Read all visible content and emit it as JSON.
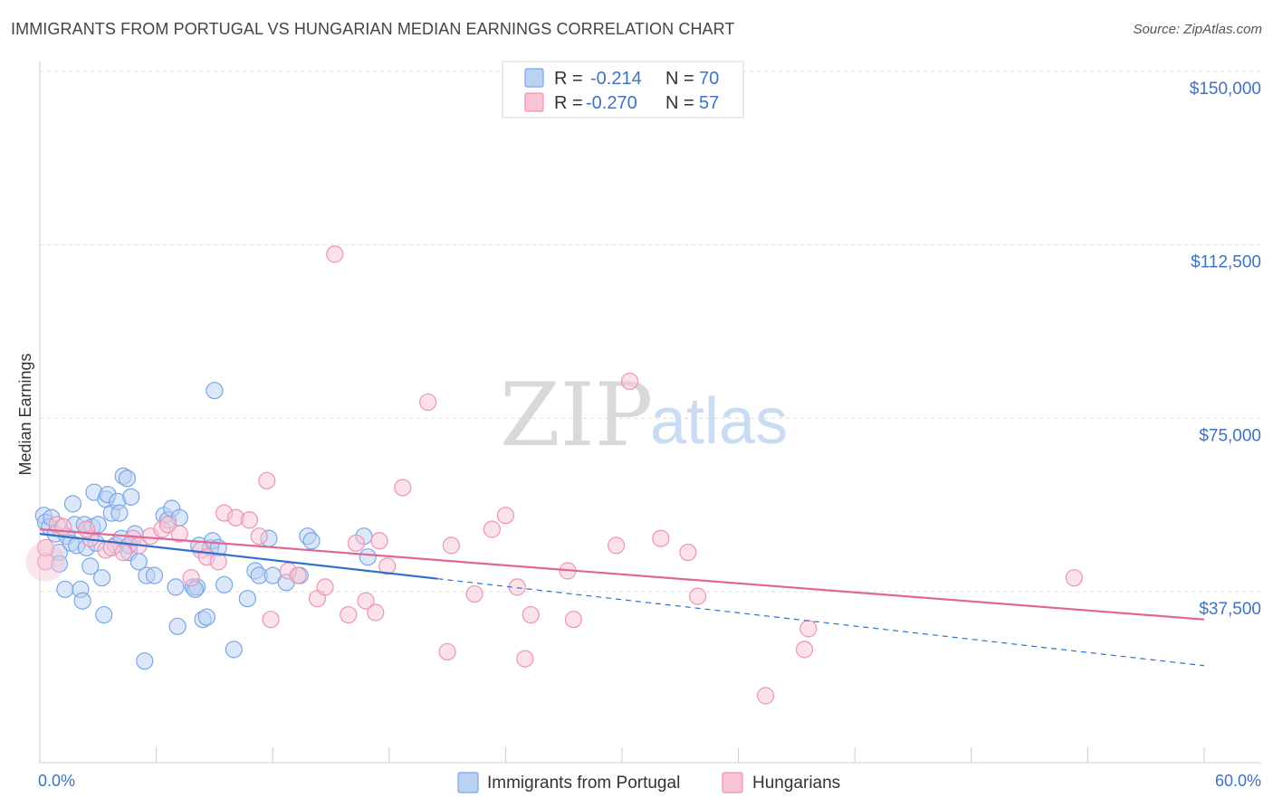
{
  "title": "IMMIGRANTS FROM PORTUGAL VS HUNGARIAN MEDIAN EARNINGS CORRELATION CHART",
  "source": "Source: ZipAtlas.com",
  "watermark": {
    "zip": "ZIP",
    "atlas": "atlas"
  },
  "colors": {
    "blue": "#7aa6e6",
    "blue_fill": "#b9d2f4",
    "blue_line": "#2f6fce",
    "pink": "#ee93b2",
    "pink_fill": "#f8c3d5",
    "pink_line": "#e06693",
    "tick": "#3d72c4"
  },
  "legend": {
    "rows": [
      {
        "r_label": "R =",
        "r_value": "-0.214",
        "n_label": "N =",
        "n_value": "70"
      },
      {
        "r_label": "R =",
        "r_value": "-0.270",
        "n_label": "N =",
        "n_value": "57"
      }
    ]
  },
  "bottom_legend": [
    "Immigrants from Portugal",
    "Hungarians"
  ],
  "chart_data": {
    "type": "scatter",
    "title": "IMMIGRANTS FROM PORTUGAL VS HUNGARIAN MEDIAN EARNINGS CORRELATION CHART",
    "xlabel": "",
    "ylabel": "Median Earnings",
    "xlim": [
      0,
      60
    ],
    "ylim": [
      0,
      157500
    ],
    "x_tick_labels": [
      "0.0%",
      "60.0%"
    ],
    "y_ticks": [
      37500,
      75000,
      112500,
      150000
    ],
    "y_tick_labels": [
      "$37,500",
      "$75,000",
      "$112,500",
      "$150,000"
    ],
    "grid": "horizontal dashed",
    "legend_position": "top-center",
    "series": [
      {
        "name": "Immigrants from Portugal",
        "color": "#7aa6e6",
        "trend": {
          "x": [
            0,
            20.5
          ],
          "y": [
            50000,
            40300
          ],
          "dashed_extension": {
            "x": [
              20.5,
              60
            ],
            "y": [
              40300,
              21500
            ]
          }
        },
        "points": [
          [
            0.2,
            54000
          ],
          [
            0.3,
            52500
          ],
          [
            0.5,
            51500
          ],
          [
            0.6,
            53500
          ],
          [
            0.8,
            50000
          ],
          [
            1.0,
            46000
          ],
          [
            1.0,
            43500
          ],
          [
            1.3,
            38000
          ],
          [
            1.4,
            49500
          ],
          [
            1.6,
            48000
          ],
          [
            1.7,
            56500
          ],
          [
            1.8,
            52000
          ],
          [
            1.9,
            47500
          ],
          [
            2.1,
            38000
          ],
          [
            2.2,
            35500
          ],
          [
            2.3,
            52000
          ],
          [
            2.4,
            47000
          ],
          [
            2.6,
            43000
          ],
          [
            2.7,
            51500
          ],
          [
            2.8,
            59000
          ],
          [
            2.9,
            48000
          ],
          [
            3.0,
            52000
          ],
          [
            3.2,
            40500
          ],
          [
            3.3,
            32500
          ],
          [
            3.4,
            57500
          ],
          [
            3.5,
            58500
          ],
          [
            3.7,
            54500
          ],
          [
            3.9,
            47500
          ],
          [
            4.0,
            57000
          ],
          [
            4.1,
            54500
          ],
          [
            4.2,
            49000
          ],
          [
            4.3,
            62500
          ],
          [
            4.5,
            62000
          ],
          [
            4.6,
            46000
          ],
          [
            4.7,
            58000
          ],
          [
            4.9,
            50000
          ],
          [
            5.1,
            44000
          ],
          [
            5.4,
            22500
          ],
          [
            5.5,
            41000
          ],
          [
            5.9,
            41000
          ],
          [
            6.4,
            54000
          ],
          [
            6.6,
            53000
          ],
          [
            6.8,
            55500
          ],
          [
            7.0,
            38500
          ],
          [
            7.1,
            30000
          ],
          [
            7.2,
            53500
          ],
          [
            7.9,
            38500
          ],
          [
            8.1,
            38500
          ],
          [
            8.2,
            47500
          ],
          [
            8.4,
            31500
          ],
          [
            8.6,
            32000
          ],
          [
            8.8,
            47000
          ],
          [
            8.9,
            48500
          ],
          [
            9.0,
            81000
          ],
          [
            9.2,
            47000
          ],
          [
            9.5,
            39000
          ],
          [
            10.0,
            25000
          ],
          [
            10.7,
            36000
          ],
          [
            11.1,
            42000
          ],
          [
            11.3,
            41000
          ],
          [
            11.8,
            49000
          ],
          [
            12.0,
            41000
          ],
          [
            12.7,
            39500
          ],
          [
            13.4,
            41000
          ],
          [
            13.8,
            49500
          ],
          [
            14.0,
            48500
          ],
          [
            16.7,
            49500
          ],
          [
            16.9,
            45000
          ],
          [
            4.6,
            47500
          ],
          [
            8.0,
            38000
          ]
        ]
      },
      {
        "name": "Hungarians",
        "color": "#ee93b2",
        "trend": {
          "x": [
            0,
            60
          ],
          "y": [
            51000,
            31500
          ]
        },
        "points": [
          [
            0.3,
            44000
          ],
          [
            0.3,
            47000
          ],
          [
            0.9,
            52000
          ],
          [
            1.2,
            51500
          ],
          [
            2.6,
            49000
          ],
          [
            3.4,
            46500
          ],
          [
            3.7,
            47000
          ],
          [
            4.3,
            46000
          ],
          [
            4.8,
            49000
          ],
          [
            5.1,
            47500
          ],
          [
            5.7,
            49500
          ],
          [
            6.3,
            51000
          ],
          [
            6.6,
            52000
          ],
          [
            7.2,
            50000
          ],
          [
            7.8,
            40500
          ],
          [
            8.3,
            46500
          ],
          [
            8.6,
            45000
          ],
          [
            9.2,
            44000
          ],
          [
            9.5,
            54500
          ],
          [
            10.1,
            53500
          ],
          [
            10.8,
            53000
          ],
          [
            11.3,
            49500
          ],
          [
            11.7,
            61500
          ],
          [
            11.9,
            31500
          ],
          [
            12.8,
            42000
          ],
          [
            13.3,
            41000
          ],
          [
            14.3,
            36000
          ],
          [
            14.7,
            38500
          ],
          [
            15.2,
            110500
          ],
          [
            15.9,
            32500
          ],
          [
            16.3,
            48000
          ],
          [
            16.8,
            35500
          ],
          [
            17.3,
            33000
          ],
          [
            17.5,
            48500
          ],
          [
            17.9,
            43000
          ],
          [
            18.7,
            60000
          ],
          [
            20.0,
            78500
          ],
          [
            21.0,
            24500
          ],
          [
            21.2,
            47500
          ],
          [
            22.4,
            37000
          ],
          [
            23.3,
            51000
          ],
          [
            24.0,
            54000
          ],
          [
            24.6,
            38500
          ],
          [
            25.0,
            23000
          ],
          [
            25.3,
            32500
          ],
          [
            27.2,
            42000
          ],
          [
            27.5,
            31500
          ],
          [
            29.7,
            47500
          ],
          [
            30.4,
            83000
          ],
          [
            32.0,
            49000
          ],
          [
            33.4,
            46000
          ],
          [
            33.9,
            36500
          ],
          [
            37.4,
            15000
          ],
          [
            39.4,
            25000
          ],
          [
            39.6,
            29500
          ],
          [
            53.3,
            40500
          ],
          [
            2.4,
            51000
          ]
        ]
      }
    ]
  }
}
